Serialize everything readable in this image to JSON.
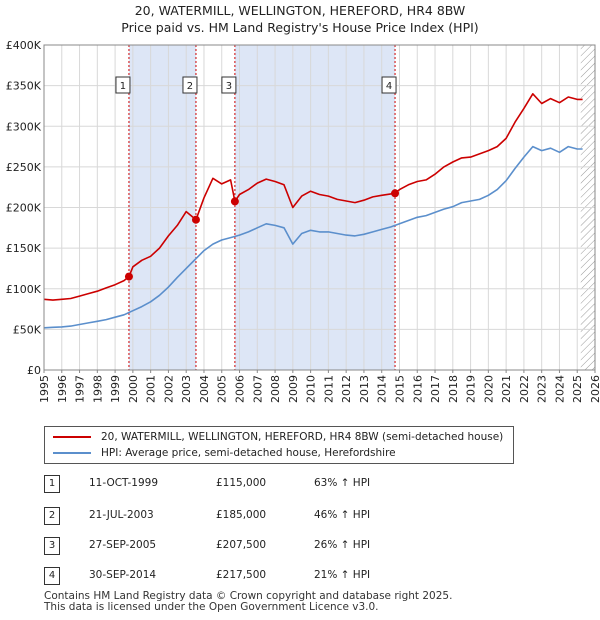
{
  "title_line1": "20, WATERMILL, WELLINGTON, HEREFORD, HR4 8BW",
  "title_line2": "Price paid vs. HM Land Registry's House Price Index (HPI)",
  "colors": {
    "property": "#cc0000",
    "hpi": "#5b8fcc",
    "shade": "#dde6f6",
    "marker_line": "#cc0000",
    "grid": "#d8d8d8"
  },
  "chart_data": {
    "type": "line",
    "xlim": [
      1995,
      2026
    ],
    "ylim": [
      0,
      400000
    ],
    "y_ticks": [
      0,
      50000,
      100000,
      150000,
      200000,
      250000,
      300000,
      350000,
      400000
    ],
    "y_tick_labels": [
      "£0",
      "£50K",
      "£100K",
      "£150K",
      "£200K",
      "£250K",
      "£300K",
      "£350K",
      "£400K"
    ],
    "x_tick_labels": [
      "1995",
      "1996",
      "1997",
      "1998",
      "1999",
      "2000",
      "2001",
      "2002",
      "2003",
      "2004",
      "2005",
      "2006",
      "2007",
      "2008",
      "2009",
      "2010",
      "2011",
      "2012",
      "2013",
      "2014",
      "2015",
      "2016",
      "2017",
      "2018",
      "2019",
      "2020",
      "2021",
      "2022",
      "2023",
      "2024",
      "2025",
      "2026"
    ],
    "shaded_ranges": [
      [
        1999.78,
        2003.55
      ],
      [
        2005.74,
        2014.75
      ]
    ],
    "hatched_from": 2025.2,
    "series": [
      {
        "name": "20, WATERMILL, WELLINGTON, HEREFORD, HR4 8BW (semi-detached house)",
        "x": [
          1995.0,
          1995.5,
          1996.0,
          1996.5,
          1997.0,
          1997.5,
          1998.0,
          1998.5,
          1999.0,
          1999.5,
          1999.78,
          2000.0,
          2000.5,
          2001.0,
          2001.5,
          2002.0,
          2002.5,
          2003.0,
          2003.55,
          2004.0,
          2004.5,
          2005.0,
          2005.5,
          2005.74,
          2006.0,
          2006.5,
          2007.0,
          2007.5,
          2008.0,
          2008.5,
          2009.0,
          2009.5,
          2010.0,
          2010.5,
          2011.0,
          2011.5,
          2012.0,
          2012.5,
          2013.0,
          2013.5,
          2014.0,
          2014.75,
          2015.0,
          2015.5,
          2016.0,
          2016.5,
          2017.0,
          2017.5,
          2018.0,
          2018.5,
          2019.0,
          2019.5,
          2020.0,
          2020.5,
          2021.0,
          2021.5,
          2022.0,
          2022.5,
          2023.0,
          2023.5,
          2024.0,
          2024.5,
          2025.0,
          2025.3
        ],
        "values": [
          87000,
          86000,
          87000,
          88000,
          91000,
          94000,
          97000,
          101000,
          105000,
          110000,
          115000,
          127000,
          135000,
          140000,
          150000,
          165000,
          178000,
          195000,
          185000,
          212000,
          236000,
          229000,
          234000,
          207500,
          216000,
          222000,
          230000,
          235000,
          232000,
          228000,
          200000,
          214000,
          220000,
          216000,
          214000,
          210000,
          208000,
          206000,
          209000,
          213000,
          215000,
          217500,
          222000,
          228000,
          232000,
          234000,
          241000,
          250000,
          256000,
          261000,
          262000,
          266000,
          270000,
          275000,
          285000,
          305000,
          322000,
          340000,
          328000,
          334000,
          329000,
          336000,
          333000,
          333000
        ]
      },
      {
        "name": "HPI: Average price, semi-detached house, Herefordshire",
        "x": [
          1995.0,
          1995.5,
          1996.0,
          1996.5,
          1997.0,
          1997.5,
          1998.0,
          1998.5,
          1999.0,
          1999.5,
          2000.0,
          2000.5,
          2001.0,
          2001.5,
          2002.0,
          2002.5,
          2003.0,
          2003.5,
          2004.0,
          2004.5,
          2005.0,
          2005.5,
          2006.0,
          2006.5,
          2007.0,
          2007.5,
          2008.0,
          2008.5,
          2009.0,
          2009.5,
          2010.0,
          2010.5,
          2011.0,
          2011.5,
          2012.0,
          2012.5,
          2013.0,
          2013.5,
          2014.0,
          2014.5,
          2015.0,
          2015.5,
          2016.0,
          2016.5,
          2017.0,
          2017.5,
          2018.0,
          2018.5,
          2019.0,
          2019.5,
          2020.0,
          2020.5,
          2021.0,
          2021.5,
          2022.0,
          2022.5,
          2023.0,
          2023.5,
          2024.0,
          2024.5,
          2025.0,
          2025.3
        ],
        "values": [
          52000,
          52500,
          53000,
          54000,
          56000,
          58000,
          60000,
          62000,
          65000,
          68000,
          73000,
          78000,
          84000,
          92000,
          102000,
          114000,
          125000,
          136000,
          147000,
          155000,
          160000,
          163000,
          166000,
          170000,
          175000,
          180000,
          178000,
          175000,
          155000,
          168000,
          172000,
          170000,
          170000,
          168000,
          166000,
          165000,
          167000,
          170000,
          173000,
          176000,
          180000,
          184000,
          188000,
          190000,
          194000,
          198000,
          201000,
          206000,
          208000,
          210000,
          215000,
          222000,
          233000,
          248000,
          262000,
          275000,
          270000,
          273000,
          268000,
          275000,
          272000,
          272000
        ]
      }
    ],
    "sale_markers": [
      {
        "label": "1",
        "x": 1999.78,
        "y": 115000
      },
      {
        "label": "2",
        "x": 2003.55,
        "y": 185000
      },
      {
        "label": "3",
        "x": 2005.74,
        "y": 207500
      },
      {
        "label": "4",
        "x": 2014.75,
        "y": 217500
      }
    ]
  },
  "legend": {
    "property_label": "20, WATERMILL, WELLINGTON, HEREFORD, HR4 8BW (semi-detached house)",
    "hpi_label": "HPI: Average price, semi-detached house, Herefordshire"
  },
  "sales": [
    {
      "num": "1",
      "date": "11-OCT-1999",
      "price": "£115,000",
      "hpi": "63% ↑ HPI"
    },
    {
      "num": "2",
      "date": "21-JUL-2003",
      "price": "£185,000",
      "hpi": "46% ↑ HPI"
    },
    {
      "num": "3",
      "date": "27-SEP-2005",
      "price": "£207,500",
      "hpi": "26% ↑ HPI"
    },
    {
      "num": "4",
      "date": "30-SEP-2014",
      "price": "£217,500",
      "hpi": "21% ↑ HPI"
    }
  ],
  "footer_line1": "Contains HM Land Registry data © Crown copyright and database right 2025.",
  "footer_line2": "This data is licensed under the Open Government Licence v3.0."
}
